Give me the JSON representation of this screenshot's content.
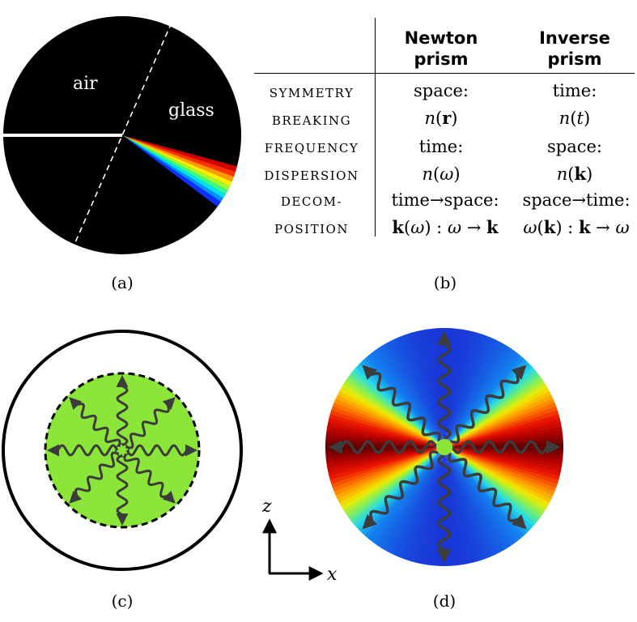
{
  "panel_a": {
    "air_label": "air",
    "glass_label": "glass",
    "caption": "(a)"
  },
  "panel_b": {
    "caption": "(b)",
    "columns": [
      "Newton prism",
      "Inverse prism"
    ],
    "column_lines": [
      [
        "Newton",
        "prism"
      ],
      [
        "Inverse",
        "prism"
      ]
    ],
    "rows": [
      {
        "header": [
          "SYMMETRY",
          "BREAKING"
        ],
        "newton": [
          "space:",
          "n(r)"
        ],
        "inverse": [
          "time:",
          "n(t)"
        ]
      },
      {
        "header": [
          "FREQUENCY",
          "DISPERSION"
        ],
        "newton": [
          "time:",
          "n(ω)"
        ],
        "inverse": [
          "space:",
          "n(k)"
        ]
      },
      {
        "header": [
          "DECOM-",
          "POSITION"
        ],
        "newton": [
          "time→space:",
          "k(ω) : ω → k"
        ],
        "inverse": [
          "space→time:",
          "ω(k) : k → ω"
        ]
      }
    ]
  },
  "panel_c": {
    "caption": "(c)"
  },
  "panel_d": {
    "caption": "(d)"
  },
  "axes": {
    "z_label": "z",
    "x_label": "x"
  },
  "colors": {
    "background_a": "#000000",
    "green_sphere": "#8ce639",
    "arrow": "#3c3c3c",
    "red": "#e00000",
    "blue": "#1a3fd9"
  }
}
